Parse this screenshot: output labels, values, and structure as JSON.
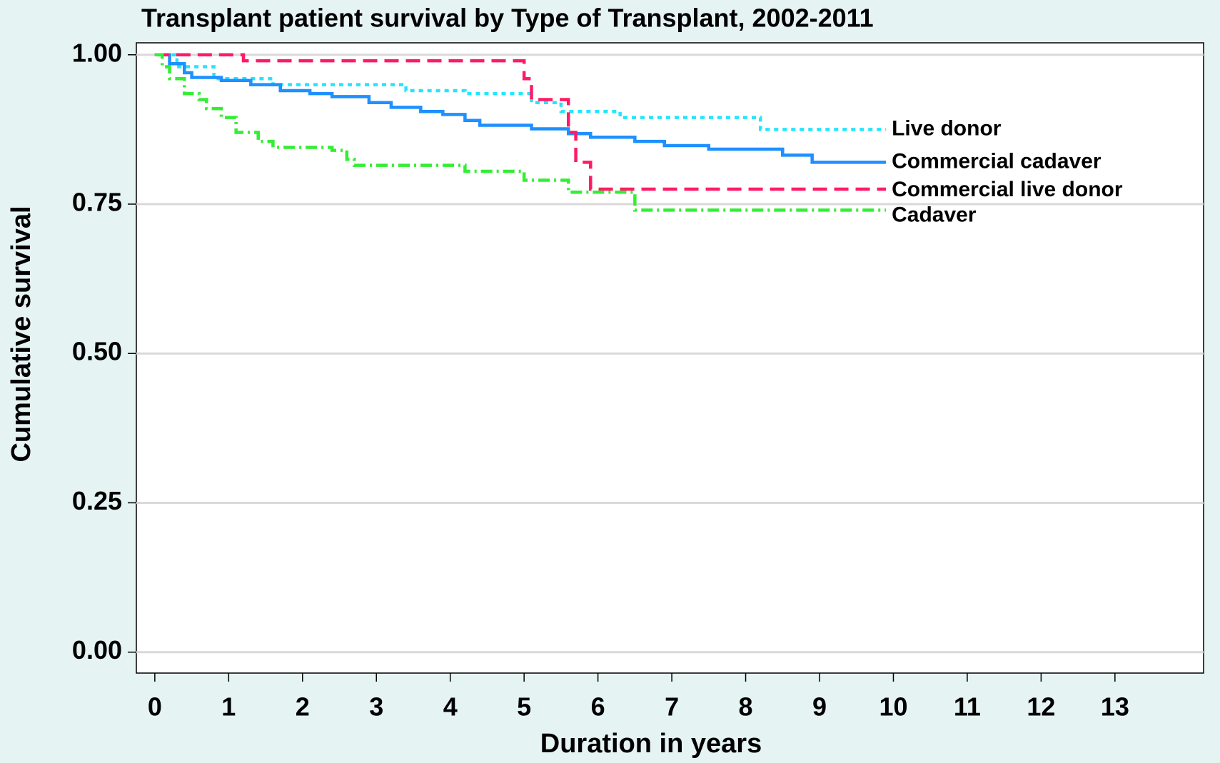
{
  "chart_data": {
    "type": "step",
    "title": "Transplant patient survival by Type of Transplant, 2002-2011",
    "x_label": "Duration in years",
    "y_label": "Cumulative survival",
    "xlim": [
      -0.25,
      14.2
    ],
    "ylim": [
      -0.035,
      1.02
    ],
    "xticks": [
      0,
      1,
      2,
      3,
      4,
      5,
      6,
      7,
      8,
      9,
      10,
      11,
      12,
      13
    ],
    "yticks": [
      {
        "value": 0,
        "label": "0.00"
      },
      {
        "value": 0.25,
        "label": "0.25"
      },
      {
        "value": 0.5,
        "label": "0.50"
      },
      {
        "value": 0.75,
        "label": "0.75"
      },
      {
        "value": 1,
        "label": "1.00"
      }
    ],
    "grid": true,
    "series": [
      {
        "name": "Live donor",
        "color": "#22e6ff",
        "dash": "6,6",
        "x": [
          0,
          0.3,
          0.8,
          1.6,
          3.4,
          4.2,
          5.1,
          5.5,
          6.3,
          8.2,
          9.9
        ],
        "values": [
          1,
          0.98,
          0.96,
          0.95,
          0.94,
          0.935,
          0.92,
          0.905,
          0.895,
          0.875,
          0.875
        ]
      },
      {
        "name": "Commercial cadaver",
        "color": "#1e90ff",
        "dash": "",
        "x": [
          0,
          0.2,
          0.4,
          0.5,
          0.9,
          1.3,
          1.7,
          2.1,
          2.4,
          2.9,
          3.2,
          3.6,
          3.9,
          4.2,
          4.4,
          5.1,
          5.6,
          5.9,
          6.5,
          6.9,
          7.5,
          8.5,
          8.9,
          9.9
        ],
        "values": [
          1,
          0.985,
          0.97,
          0.962,
          0.957,
          0.95,
          0.94,
          0.935,
          0.93,
          0.92,
          0.912,
          0.905,
          0.9,
          0.89,
          0.882,
          0.876,
          0.868,
          0.862,
          0.855,
          0.848,
          0.842,
          0.832,
          0.82,
          0.82
        ]
      },
      {
        "name": "Commercial live donor",
        "color": "#ff1a66",
        "dash": "20,10",
        "x": [
          0,
          1.2,
          5.0,
          5.1,
          5.6,
          5.7,
          5.9,
          9.9
        ],
        "values": [
          1,
          0.99,
          0.96,
          0.925,
          0.87,
          0.82,
          0.775,
          0.775
        ]
      },
      {
        "name": "Cadaver",
        "color": "#33ee33",
        "dash": "16,6,3,6",
        "x": [
          0,
          0.1,
          0.2,
          0.4,
          0.6,
          0.7,
          0.9,
          1.1,
          1.4,
          1.6,
          2.4,
          2.6,
          2.7,
          4.2,
          5.0,
          5.6,
          6.5,
          9.9
        ],
        "values": [
          1,
          0.98,
          0.96,
          0.935,
          0.925,
          0.91,
          0.895,
          0.87,
          0.855,
          0.845,
          0.84,
          0.825,
          0.815,
          0.805,
          0.79,
          0.77,
          0.74,
          0.74
        ]
      }
    ]
  }
}
